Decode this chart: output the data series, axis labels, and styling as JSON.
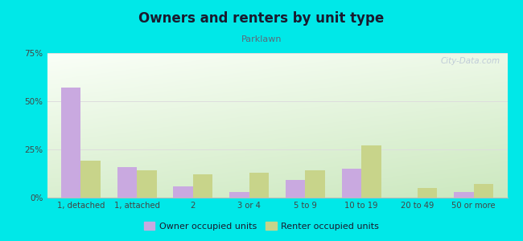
{
  "title": "Owners and renters by unit type",
  "subtitle": "Parklawn",
  "categories": [
    "1, detached",
    "1, attached",
    "2",
    "3 or 4",
    "5 to 9",
    "10 to 19",
    "20 to 49",
    "50 or more"
  ],
  "owner_values": [
    57,
    16,
    6,
    3,
    9,
    15,
    0,
    3
  ],
  "renter_values": [
    19,
    14,
    12,
    13,
    14,
    27,
    5,
    7
  ],
  "owner_color": "#c9a9e0",
  "renter_color": "#c8d48a",
  "background_color": "#00e8e8",
  "plot_bg_top_left": "#f5faf2",
  "plot_bg_bottom_right": "#cde8c0",
  "ylim": [
    0,
    75
  ],
  "yticks": [
    0,
    25,
    50,
    75
  ],
  "yticklabels": [
    "0%",
    "25%",
    "50%",
    "75%"
  ],
  "legend_owner": "Owner occupied units",
  "legend_renter": "Renter occupied units",
  "bar_width": 0.35,
  "title_color": "#1a1a2e",
  "subtitle_color": "#5a6a7a",
  "tick_color": "#444444",
  "grid_color": "#e8e8e8",
  "watermark_color": "#c0ccd8",
  "watermark_text": "City-Data.com"
}
